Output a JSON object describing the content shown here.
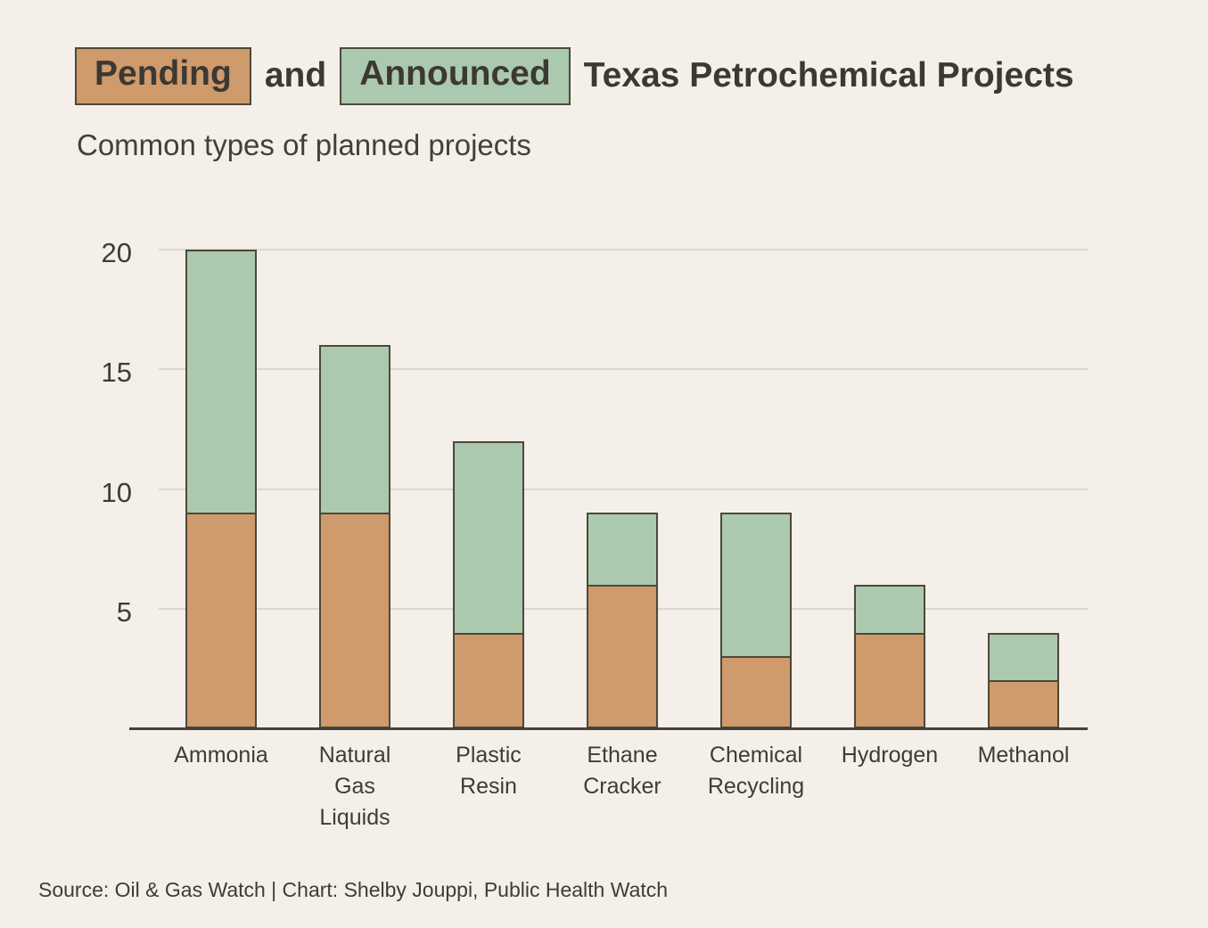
{
  "title": {
    "pending_label": "Pending",
    "connector": "and",
    "announced_label": "Announced",
    "rest": "Texas Petrochemical Projects"
  },
  "subtitle": "Common types of planned projects",
  "source": "Source: Oil & Gas Watch | Chart: Shelby Jouppi, Public Health Watch",
  "colors": {
    "background": "#f5efe9",
    "pending": "#cf9a6c",
    "announced": "#abc9ae",
    "outline": "#4d4839",
    "title_text": "#3c3832",
    "subtitle_text": "#433f39",
    "tick_text": "#3f3b35",
    "gridline": "#dcd7d1",
    "axis": "#45413a"
  },
  "chart_data": {
    "type": "bar",
    "stacked": true,
    "title": "Pending and Announced Texas Petrochemical Projects",
    "subtitle": "Common types of planned projects",
    "categories": [
      "Ammonia",
      "Natural Gas Liquids",
      "Plastic Resin",
      "Ethane Cracker",
      "Chemical Recycling",
      "Hydrogen",
      "Methanol"
    ],
    "series": [
      {
        "name": "Pending",
        "color": "#cf9a6c",
        "values": [
          9,
          9,
          4,
          6,
          3,
          4,
          2
        ]
      },
      {
        "name": "Announced",
        "color": "#abc9ae",
        "values": [
          11,
          7,
          8,
          3,
          6,
          2,
          2
        ]
      }
    ],
    "totals": [
      20,
      16,
      12,
      9,
      9,
      6,
      4
    ],
    "xlabel": "",
    "ylabel": "",
    "yticks": [
      5,
      10,
      15,
      20
    ],
    "ylim": [
      0,
      20
    ],
    "grid": "horizontal",
    "legend_position": "inline-title-highlights"
  }
}
